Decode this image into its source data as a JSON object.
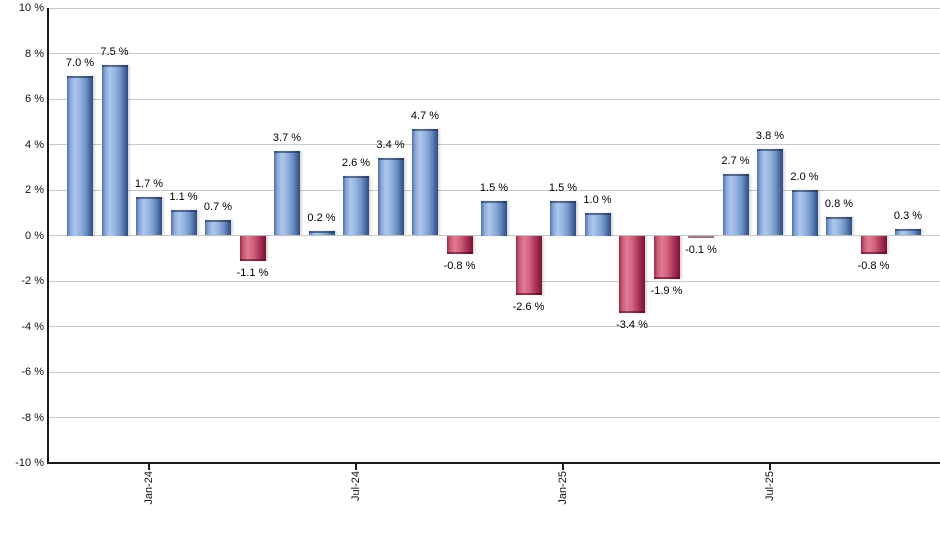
{
  "chart_data": {
    "type": "bar",
    "title": "",
    "xlabel": "",
    "ylabel": "",
    "ylim": [
      -10,
      10
    ],
    "grid": true,
    "y_tick_step_pct": 2,
    "y_ticks": [
      "10 %",
      "8 %",
      "6 %",
      "4 %",
      "2 %",
      "0 %",
      "-2 %",
      "-4 %",
      "-6 %",
      "-8 %",
      "-10 %"
    ],
    "x_ticks": [
      {
        "label": "Jan-24",
        "bar_index": 2
      },
      {
        "label": "Jul-24",
        "bar_index": 8
      },
      {
        "label": "Jan-25",
        "bar_index": 14
      },
      {
        "label": "Jul-25",
        "bar_index": 20
      }
    ],
    "bars": [
      {
        "value": 7.0,
        "label": "7.0 %"
      },
      {
        "value": 7.5,
        "label": "7.5 %"
      },
      {
        "value": 1.7,
        "label": "1.7 %"
      },
      {
        "value": 1.1,
        "label": "1.1 %"
      },
      {
        "value": 0.7,
        "label": "0.7 %"
      },
      {
        "value": -1.1,
        "label": "-1.1 %"
      },
      {
        "value": 3.7,
        "label": "3.7 %"
      },
      {
        "value": 0.2,
        "label": "0.2 %"
      },
      {
        "value": 2.6,
        "label": "2.6 %"
      },
      {
        "value": 3.4,
        "label": "3.4 %"
      },
      {
        "value": 4.7,
        "label": "4.7 %"
      },
      {
        "value": -0.8,
        "label": "-0.8 %"
      },
      {
        "value": 1.5,
        "label": "1.5 %"
      },
      {
        "value": -2.6,
        "label": "-2.6 %"
      },
      {
        "value": 1.5,
        "label": "1.5 %"
      },
      {
        "value": 1.0,
        "label": "1.0 %"
      },
      {
        "value": -3.4,
        "label": "-3.4 %"
      },
      {
        "value": -1.9,
        "label": "-1.9 %"
      },
      {
        "value": -0.1,
        "label": "-0.1 %"
      },
      {
        "value": 2.7,
        "label": "2.7 %"
      },
      {
        "value": 3.8,
        "label": "3.8 %"
      },
      {
        "value": 2.0,
        "label": "2.0 %"
      },
      {
        "value": 0.8,
        "label": "0.8 %"
      },
      {
        "value": -0.8,
        "label": "-0.8 %"
      },
      {
        "value": 0.3,
        "label": "0.3 %"
      }
    ],
    "colors": {
      "positive_bar": "#8fb0de",
      "negative_bar": "#cf5b7c",
      "gridline": "#c9c9c9",
      "axis": "#1a1a1a",
      "label_text": "#000000"
    },
    "legend": null
  }
}
